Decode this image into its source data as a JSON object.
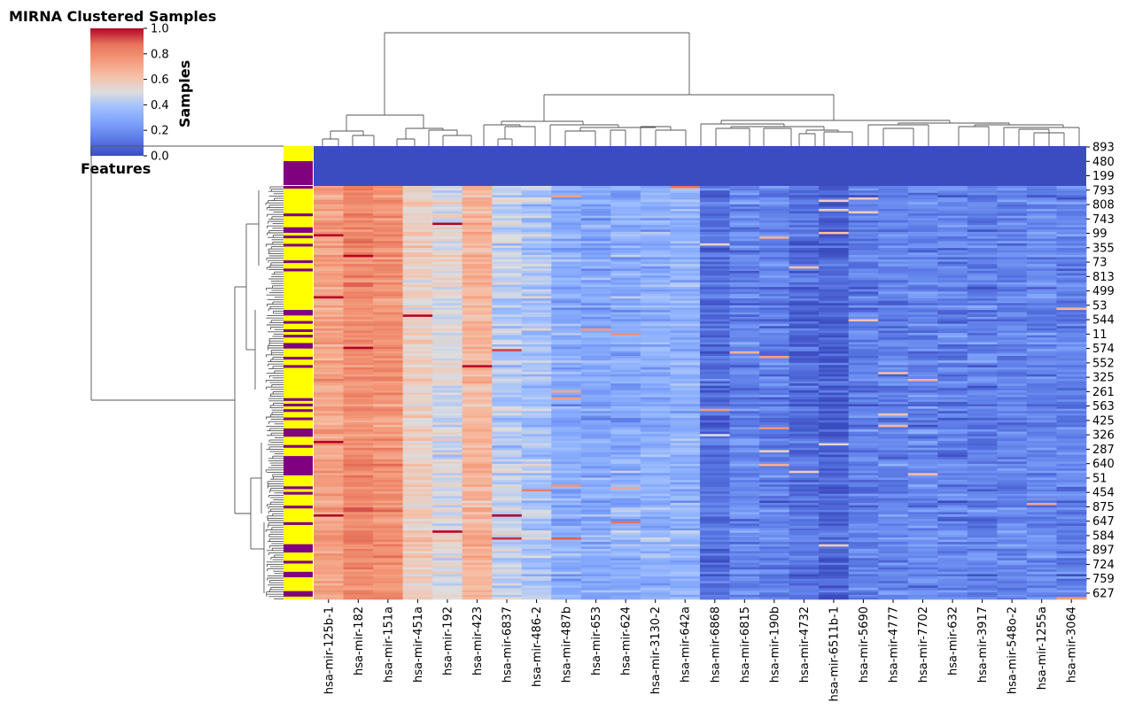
{
  "chart_data": {
    "type": "heatmap",
    "title": "MIRNA Clustered Samples",
    "colorbar_label": "Samples",
    "row_dendrogram_label": "Features",
    "colormap": "coolwarm",
    "colorbar": {
      "range": [
        0.0,
        1.0
      ],
      "ticks": [
        "0.0",
        "0.2",
        "0.4",
        "0.6",
        "0.8",
        "1.0"
      ]
    },
    "columns": [
      "hsa-mir-125b-1",
      "hsa-mir-182",
      "hsa-mir-151a",
      "hsa-mir-451a",
      "hsa-mir-192",
      "hsa-mir-423",
      "hsa-mir-6837",
      "hsa-mir-486-2",
      "hsa-mir-487b",
      "hsa-mir-653",
      "hsa-mir-624",
      "hsa-mir-3130-2",
      "hsa-mir-642a",
      "hsa-mir-6868",
      "hsa-mir-6815",
      "hsa-mir-190b",
      "hsa-mir-4732",
      "hsa-mir-6511b-1",
      "hsa-mir-5690",
      "hsa-mir-4777",
      "hsa-mir-7702",
      "hsa-mir-632",
      "hsa-mir-3917",
      "hsa-mir-548o-2",
      "hsa-mir-1255a",
      "hsa-mir-3064"
    ],
    "column_mean_values": [
      0.72,
      0.8,
      0.78,
      0.56,
      0.5,
      0.66,
      0.44,
      0.4,
      0.3,
      0.28,
      0.3,
      0.32,
      0.33,
      0.1,
      0.18,
      0.15,
      0.1,
      0.06,
      0.15,
      0.16,
      0.17,
      0.16,
      0.15,
      0.17,
      0.18,
      0.16
    ],
    "row_labels": [
      "893",
      "480",
      "199",
      "793",
      "808",
      "743",
      "99",
      "355",
      "73",
      "813",
      "499",
      "53",
      "544",
      "11",
      "574",
      "552",
      "325",
      "261",
      "563",
      "425",
      "326",
      "287",
      "640",
      "51",
      "454",
      "875",
      "647",
      "584",
      "897",
      "724",
      "759",
      "627"
    ],
    "top_rows_value": 0.0,
    "row_color_groups": {
      "group_a": "#ffff00",
      "group_b": "#800080"
    }
  }
}
